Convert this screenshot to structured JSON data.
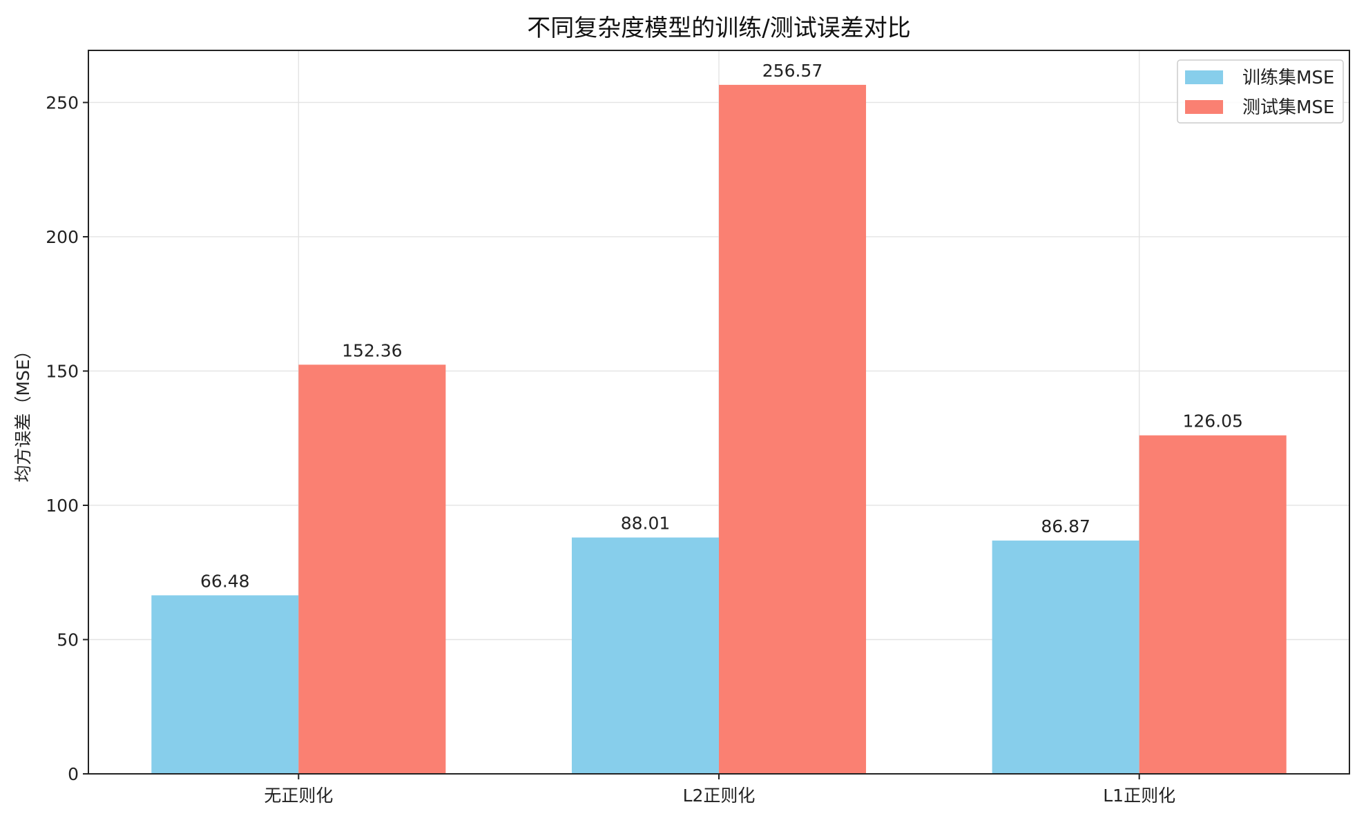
{
  "chart_data": {
    "type": "bar",
    "title": "不同复杂度模型的训练/测试误差对比",
    "xlabel": "",
    "ylabel": "均方误差（MSE）",
    "categories": [
      "无正则化",
      "L2正则化",
      "L1正则化"
    ],
    "series": [
      {
        "name": "训练集MSE",
        "color": "#87ceeb",
        "values": [
          66.48,
          88.01,
          86.87
        ],
        "labels": [
          "66.48",
          "88.01",
          "86.87"
        ]
      },
      {
        "name": "测试集MSE",
        "color": "#fa8072",
        "values": [
          152.36,
          256.57,
          126.05
        ],
        "labels": [
          "152.36",
          "256.57",
          "126.05"
        ]
      }
    ],
    "ylim": [
      0,
      269.4
    ],
    "yticks": [
      0,
      50,
      100,
      150,
      200,
      250
    ],
    "grid": true,
    "legend": "top-right"
  }
}
